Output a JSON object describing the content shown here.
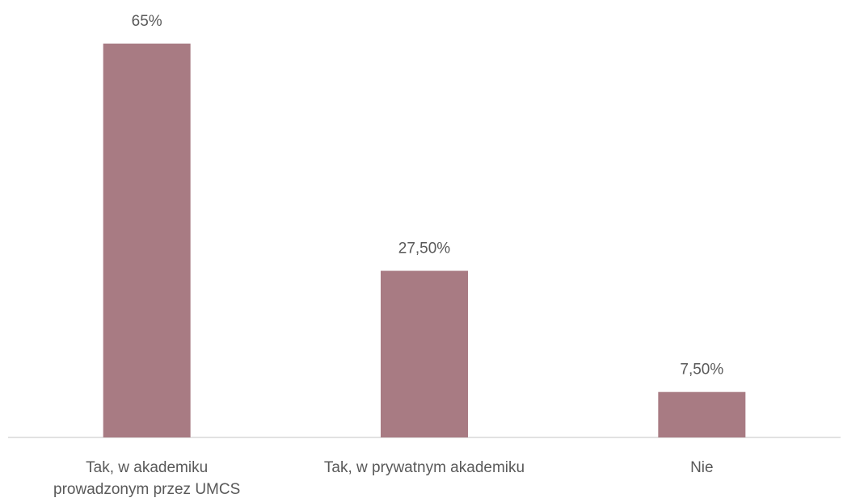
{
  "chart_data": {
    "type": "bar",
    "categories": [
      "Tak, w akademiku prowadzonym przez UMCS",
      "Tak, w prywatnym akademiku",
      "Nie"
    ],
    "values": [
      65,
      27.5,
      7.5
    ],
    "value_labels": [
      "65%",
      "27,50%",
      "7,50%"
    ],
    "color": "#a87b83"
  }
}
